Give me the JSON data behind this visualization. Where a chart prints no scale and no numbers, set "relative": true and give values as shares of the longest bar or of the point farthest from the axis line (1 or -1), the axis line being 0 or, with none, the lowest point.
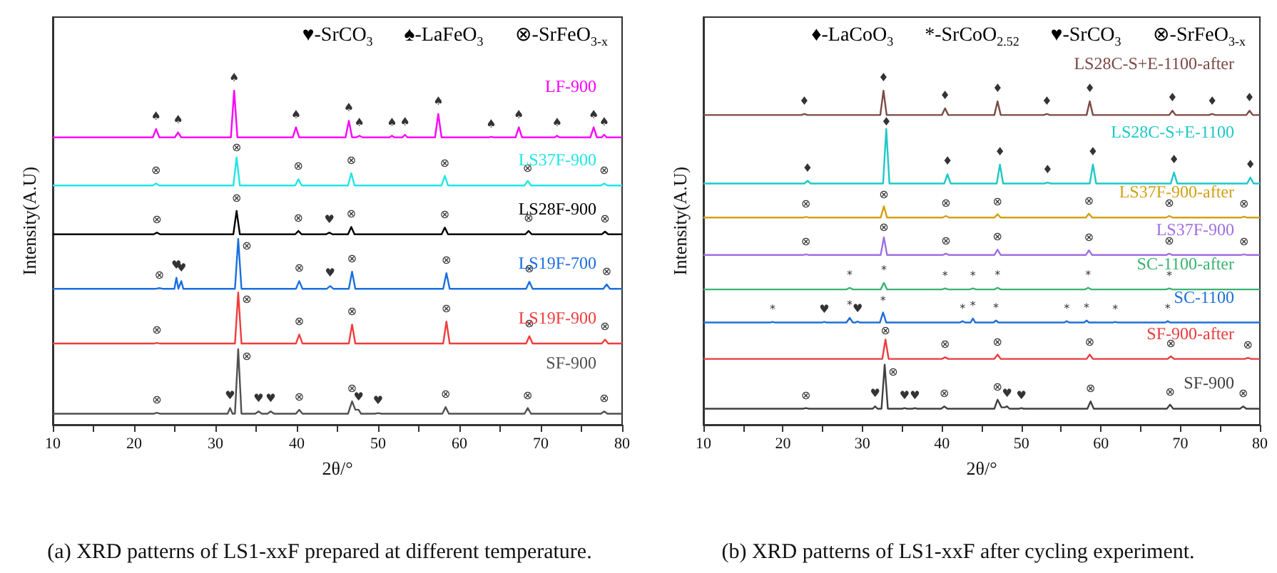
{
  "chart_data": [
    {
      "type": "line",
      "title": "(a) XRD patterns of LS1-xxF prepared at different temperature.",
      "xlabel": "2θ/°",
      "ylabel": "Intensity(A.U)",
      "relative": true,
      "legend": false,
      "grid": false,
      "xlim": [
        10,
        80
      ],
      "xticks": [
        10,
        {
          "value": 15,
          "label": null
        },
        20,
        {
          "value": 25,
          "label": null
        },
        30,
        {
          "value": 35,
          "label": null
        },
        40,
        {
          "value": 45,
          "label": null
        },
        50,
        {
          "value": 55,
          "label": null
        },
        60,
        {
          "value": 65,
          "label": null
        },
        70,
        {
          "value": 75,
          "label": null
        },
        80
      ],
      "series": [
        {
          "name": "LF-900",
          "color": "#ff00ff",
          "x": [
            10,
            22.3,
            22.7,
            23.1,
            25.0,
            25.4,
            25.8,
            31.9,
            32.3,
            32.7,
            39.5,
            39.9,
            40.3,
            46.0,
            46.4,
            46.8,
            47.3,
            47.7,
            48.1,
            51.4,
            51.7,
            52.0,
            53.0,
            53.3,
            53.6,
            57.0,
            57.4,
            57.8,
            63.6,
            63.9,
            64.2,
            66.9,
            67.3,
            67.7,
            71.7,
            72.0,
            72.3,
            76.1,
            76.5,
            76.9,
            77.5,
            77.8,
            78.1,
            80
          ],
          "values": [
            0.86,
            0.86,
            0.885,
            0.86,
            0.86,
            0.875,
            0.86,
            0.86,
            1,
            0.86,
            0.86,
            0.89,
            0.86,
            0.86,
            0.91,
            0.86,
            0.86,
            0.865,
            0.86,
            0.86,
            0.865,
            0.86,
            0.86,
            0.868,
            0.86,
            0.86,
            0.93,
            0.86,
            0.86,
            0.862,
            0.86,
            0.86,
            0.89,
            0.86,
            0.86,
            0.865,
            0.86,
            0.86,
            0.89,
            0.86,
            0.86,
            0.868,
            0.86,
            0.86
          ]
        },
        {
          "name": "LS37F-900",
          "color": "#22e5e5",
          "x": [
            10,
            22.3,
            22.7,
            23.1,
            32.2,
            32.6,
            33.0,
            39.8,
            40.2,
            40.6,
            46.3,
            46.7,
            47.1,
            57.8,
            58.2,
            58.6,
            68.0,
            68.4,
            68.8,
            77.4,
            77.8,
            78.2,
            80
          ],
          "values": [
            0.716,
            0.716,
            0.722,
            0.716,
            0.716,
            0.8,
            0.716,
            0.716,
            0.735,
            0.716,
            0.716,
            0.753,
            0.716,
            0.716,
            0.745,
            0.716,
            0.716,
            0.73,
            0.716,
            0.716,
            0.722,
            0.716,
            0.716
          ]
        },
        {
          "name": "LS28F-900",
          "color": "#000000",
          "x": [
            10,
            22.4,
            22.8,
            23.2,
            32.2,
            32.6,
            33.0,
            39.8,
            40.2,
            40.6,
            43.6,
            44.0,
            44.4,
            46.3,
            46.7,
            47.1,
            57.8,
            58.2,
            58.6,
            68.1,
            68.5,
            68.9,
            77.5,
            77.9,
            78.3,
            80
          ],
          "values": [
            0.57,
            0.57,
            0.575,
            0.57,
            0.57,
            0.64,
            0.57,
            0.57,
            0.58,
            0.57,
            0.57,
            0.575,
            0.57,
            0.57,
            0.592,
            0.57,
            0.57,
            0.59,
            0.57,
            0.57,
            0.58,
            0.57,
            0.57,
            0.578,
            0.57,
            0.57
          ]
        },
        {
          "name": "LS19F-700",
          "color": "#1a6fdf",
          "x": [
            10,
            22.7,
            23.1,
            23.5,
            24.95,
            25.2,
            25.45,
            25.55,
            25.8,
            26.05,
            32.4,
            32.8,
            33.2,
            39.9,
            40.3,
            40.7,
            43.7,
            44.1,
            44.5,
            46.4,
            46.8,
            47.2,
            58.0,
            58.4,
            58.8,
            68.2,
            68.6,
            69.0,
            77.7,
            78.1,
            78.5,
            80
          ],
          "values": [
            0.407,
            0.407,
            0.409,
            0.407,
            0.407,
            0.44,
            0.407,
            0.407,
            0.43,
            0.407,
            0.407,
            0.556,
            0.407,
            0.407,
            0.43,
            0.407,
            0.407,
            0.415,
            0.407,
            0.407,
            0.458,
            0.407,
            0.407,
            0.454,
            0.407,
            0.407,
            0.428,
            0.407,
            0.407,
            0.42,
            0.407,
            0.407
          ]
        },
        {
          "name": "LS19F-900",
          "color": "#f03c3c",
          "x": [
            10,
            22.4,
            22.8,
            23.2,
            32.4,
            32.8,
            33.2,
            39.9,
            40.3,
            40.7,
            46.4,
            46.8,
            47.2,
            58.0,
            58.4,
            58.8,
            68.2,
            68.6,
            69.0,
            77.5,
            77.9,
            78.3,
            80
          ],
          "values": [
            0.243,
            0.243,
            0.245,
            0.243,
            0.243,
            0.396,
            0.243,
            0.243,
            0.27,
            0.243,
            0.243,
            0.3,
            0.243,
            0.243,
            0.309,
            0.243,
            0.243,
            0.265,
            0.243,
            0.243,
            0.255,
            0.243,
            0.243
          ]
        },
        {
          "name": "SF-900",
          "color": "#505050",
          "x": [
            10,
            22.4,
            22.8,
            23.2,
            31.5,
            31.8,
            32.1,
            32.4,
            32.8,
            33.2,
            34.9,
            35.3,
            35.7,
            36.4,
            36.8,
            37.2,
            39.9,
            40.3,
            40.7,
            46.3,
            46.8,
            47.2,
            47.6,
            47.9,
            49.6,
            50.0,
            50.4,
            57.9,
            58.3,
            58.7,
            68.0,
            68.4,
            68.8,
            77.4,
            77.8,
            78.2,
            80
          ],
          "values": [
            0.033,
            0.033,
            0.036,
            0.033,
            0.033,
            0.05,
            0.033,
            0.033,
            0.226,
            0.033,
            0.033,
            0.04,
            0.033,
            0.033,
            0.04,
            0.033,
            0.033,
            0.045,
            0.033,
            0.033,
            0.07,
            0.045,
            0.045,
            0.033,
            0.033,
            0.035,
            0.033,
            0.033,
            0.053,
            0.033,
            0.033,
            0.05,
            0.033,
            0.033,
            0.04,
            0.033,
            0.033
          ]
        }
      ],
      "annotations": [
        "♥-SrCO$_{3}$",
        "♠-LaFeO$_{3}$",
        "⊗-SrFeO$_{3-x}$",
        {
          "text": "♠",
          "x": 22.7,
          "y": 0.885
        },
        {
          "text": "♠",
          "x": 25.4,
          "y": 0.875
        },
        {
          "text": "♠",
          "x": 32.3,
          "y": 1
        },
        {
          "text": "♠",
          "x": 39.9,
          "y": 0.89
        },
        {
          "text": "♠",
          "x": 46.4,
          "y": 0.91
        },
        {
          "text": "♠",
          "x": 47.7,
          "y": 0.865
        },
        {
          "text": "♠",
          "x": 51.7,
          "y": 0.865
        },
        {
          "text": "♠",
          "x": 53.3,
          "y": 0.868
        },
        {
          "text": "♠",
          "x": 57.4,
          "y": 0.93
        },
        {
          "text": "♠",
          "x": 63.9,
          "y": 0.862
        },
        {
          "text": "♠",
          "x": 67.3,
          "y": 0.89
        },
        {
          "text": "♠",
          "x": 72.0,
          "y": 0.865
        },
        {
          "text": "♠",
          "x": 76.5,
          "y": 0.89
        },
        {
          "text": "♠",
          "x": 77.8,
          "y": 0.868
        },
        {
          "text": "⊗",
          "x": 22.7,
          "y": 0.722
        },
        {
          "text": "⊗",
          "x": 32.6,
          "y": 0.8
        },
        {
          "text": "⊗",
          "x": 40.2,
          "y": 0.735
        },
        {
          "text": "⊗",
          "x": 46.7,
          "y": 0.753
        },
        {
          "text": "⊗",
          "x": 58.2,
          "y": 0.745
        },
        {
          "text": "⊗",
          "x": 68.4,
          "y": 0.73
        },
        {
          "text": "⊗",
          "x": 77.8,
          "y": 0.722
        },
        {
          "text": "⊗",
          "x": 22.8,
          "y": 0.575
        },
        {
          "text": "⊗",
          "x": 32.6,
          "y": 0.64
        },
        {
          "text": "⊗",
          "x": 40.2,
          "y": 0.58
        },
        {
          "text": "♥",
          "x": 44.0,
          "y": 0.575
        },
        {
          "text": "⊗",
          "x": 46.7,
          "y": 0.592
        },
        {
          "text": "⊗",
          "x": 58.2,
          "y": 0.59
        },
        {
          "text": "⊗",
          "x": 68.5,
          "y": 0.58
        },
        {
          "text": "⊗",
          "x": 77.9,
          "y": 0.578
        },
        {
          "text": "⊗",
          "x": 23.1,
          "y": 0.409
        },
        {
          "text": "♥",
          "x": 25.2,
          "y": 0.44
        },
        {
          "text": "♥",
          "x": 25.8,
          "y": 0.43
        },
        {
          "text": "⊗",
          "x": 32.8,
          "y": 0.556
        },
        {
          "text": "⊗",
          "x": 40.3,
          "y": 0.43
        },
        {
          "text": "♥",
          "x": 44.1,
          "y": 0.415
        },
        {
          "text": "⊗",
          "x": 46.8,
          "y": 0.458
        },
        {
          "text": "⊗",
          "x": 58.4,
          "y": 0.454
        },
        {
          "text": "⊗",
          "x": 68.6,
          "y": 0.428
        },
        {
          "text": "⊗",
          "x": 78.1,
          "y": 0.42
        },
        {
          "text": "⊗",
          "x": 22.8,
          "y": 0.245
        },
        {
          "text": "⊗",
          "x": 32.8,
          "y": 0.396
        },
        {
          "text": "⊗",
          "x": 40.3,
          "y": 0.27
        },
        {
          "text": "⊗",
          "x": 46.8,
          "y": 0.3
        },
        {
          "text": "⊗",
          "x": 58.4,
          "y": 0.309
        },
        {
          "text": "⊗",
          "x": 68.6,
          "y": 0.265
        },
        {
          "text": "⊗",
          "x": 77.9,
          "y": 0.255
        },
        {
          "text": "⊗",
          "x": 22.8,
          "y": 0.036
        },
        {
          "text": "♥",
          "x": 31.8,
          "y": 0.05
        },
        {
          "text": "⊗",
          "x": 32.8,
          "y": 0.226
        },
        {
          "text": "♥",
          "x": 35.3,
          "y": 0.04
        },
        {
          "text": "♥",
          "x": 36.8,
          "y": 0.04
        },
        {
          "text": "⊗",
          "x": 40.3,
          "y": 0.045
        },
        {
          "text": "⊗",
          "x": 46.8,
          "y": 0.07
        },
        {
          "text": "♥",
          "x": 47.6,
          "y": 0.045
        },
        {
          "text": "♥",
          "x": 50.0,
          "y": 0.035
        },
        {
          "text": "⊗",
          "x": 58.3,
          "y": 0.053
        },
        {
          "text": "⊗",
          "x": 68.4,
          "y": 0.05
        },
        {
          "text": "⊗",
          "x": 77.8,
          "y": 0.04
        }
      ]
    },
    {
      "type": "line",
      "title": "(b) XRD patterns of LS1-xxF after cycling experiment.",
      "xlabel": "2θ/°",
      "ylabel": "Intensity(A.U)",
      "relative": true,
      "legend": false,
      "grid": false,
      "xlim": [
        10,
        80
      ],
      "xticks": [
        10,
        {
          "value": 15,
          "label": null
        },
        20,
        {
          "value": 25,
          "label": null
        },
        30,
        {
          "value": 35,
          "label": null
        },
        40,
        {
          "value": 45,
          "label": null
        },
        50,
        {
          "value": 55,
          "label": null
        },
        60,
        {
          "value": 65,
          "label": null
        },
        70,
        {
          "value": 75,
          "label": null
        },
        80
      ],
      "series": [
        {
          "name": "LS28C-S+E-1100-after",
          "color": "#7b4a44",
          "x": [
            10,
            22.3,
            22.7,
            23.1,
            32.25,
            32.65,
            33.05,
            40.0,
            40.4,
            40.8,
            46.6,
            47.0,
            47.4,
            52.8,
            53.2,
            53.6,
            58.2,
            58.6,
            59.0,
            68.6,
            69.0,
            69.4,
            73.6,
            74.0,
            74.4,
            78.3,
            78.7,
            79.1,
            80
          ],
          "values": [
            0.927,
            0.927,
            0.93,
            0.927,
            0.927,
            1,
            0.927,
            0.927,
            0.947,
            0.927,
            0.927,
            0.968,
            0.927,
            0.927,
            0.93,
            0.927,
            0.927,
            0.968,
            0.927,
            0.927,
            0.94,
            0.927,
            0.927,
            0.93,
            0.927,
            0.927,
            0.94,
            0.927,
            0.927
          ]
        },
        {
          "name": "LS28C-S+E-1100",
          "color": "#1ec8c8",
          "x": [
            10,
            22.7,
            23.1,
            23.5,
            32.6,
            33.0,
            33.4,
            40.3,
            40.7,
            41.1,
            46.9,
            47.3,
            47.7,
            52.9,
            53.3,
            53.7,
            58.6,
            59.0,
            59.4,
            68.8,
            69.2,
            69.6,
            78.4,
            78.8,
            79.2,
            80
          ],
          "values": [
            0.722,
            0.722,
            0.73,
            0.722,
            0.722,
            0.885,
            0.722,
            0.722,
            0.75,
            0.722,
            0.722,
            0.779,
            0.722,
            0.722,
            0.725,
            0.722,
            0.722,
            0.779,
            0.722,
            0.722,
            0.755,
            0.722,
            0.722,
            0.74,
            0.722,
            0.722
          ]
        },
        {
          "name": "LS37F-900-after",
          "color": "#d4a017",
          "x": [
            10,
            22.5,
            22.9,
            23.3,
            32.3,
            32.7,
            33.1,
            40.1,
            40.5,
            40.9,
            46.6,
            47.0,
            47.4,
            58.1,
            58.5,
            58.9,
            68.2,
            68.6,
            69.0,
            77.6,
            78.0,
            78.4,
            80
          ],
          "values": [
            0.62,
            0.62,
            0.622,
            0.62,
            0.62,
            0.654,
            0.62,
            0.62,
            0.625,
            0.62,
            0.62,
            0.63,
            0.62,
            0.62,
            0.632,
            0.62,
            0.62,
            0.625,
            0.62,
            0.62,
            0.623,
            0.62,
            0.62
          ]
        },
        {
          "name": "LS37F-900",
          "color": "#a070e0",
          "x": [
            10,
            22.5,
            22.9,
            23.3,
            32.3,
            32.7,
            33.1,
            40.1,
            40.5,
            40.9,
            46.6,
            47.0,
            47.4,
            58.1,
            58.5,
            58.9,
            68.2,
            68.6,
            69.0,
            77.6,
            78.0,
            78.4,
            80
          ],
          "values": [
            0.508,
            0.508,
            0.51,
            0.508,
            0.508,
            0.561,
            0.508,
            0.508,
            0.512,
            0.508,
            0.508,
            0.524,
            0.508,
            0.508,
            0.522,
            0.508,
            0.508,
            0.512,
            0.508,
            0.508,
            0.51,
            0.508,
            0.508
          ]
        },
        {
          "name": "SC-1100-after",
          "color": "#3cb371",
          "x": [
            10,
            28.0,
            28.4,
            28.8,
            32.3,
            32.7,
            33.1,
            40.0,
            40.4,
            40.8,
            43.5,
            43.9,
            44.3,
            46.6,
            47.0,
            47.4,
            58.0,
            58.4,
            58.8,
            68.2,
            68.6,
            69.0,
            80
          ],
          "values": [
            0.405,
            0.405,
            0.41,
            0.405,
            0.405,
            0.425,
            0.405,
            0.405,
            0.408,
            0.405,
            0.405,
            0.408,
            0.405,
            0.405,
            0.41,
            0.405,
            0.405,
            0.41,
            0.405,
            0.405,
            0.408,
            0.405,
            0.405
          ]
        },
        {
          "name": "SC-1100",
          "color": "#1f6fd6",
          "x": [
            10,
            18.4,
            18.7,
            19.0,
            24.9,
            25.2,
            25.5,
            28.0,
            28.4,
            28.8,
            29.1,
            29.4,
            29.7,
            32.2,
            32.6,
            33.0,
            42.3,
            42.6,
            42.9,
            43.6,
            43.9,
            44.2,
            46.5,
            46.8,
            47.1,
            55.4,
            55.7,
            56.0,
            57.9,
            58.2,
            58.5,
            61.5,
            61.8,
            62.1,
            68.1,
            68.4,
            68.7,
            80
          ],
          "values": [
            0.306,
            0.306,
            0.308,
            0.306,
            0.306,
            0.308,
            0.306,
            0.306,
            0.32,
            0.306,
            0.306,
            0.309,
            0.306,
            0.306,
            0.336,
            0.306,
            0.306,
            0.31,
            0.306,
            0.306,
            0.318,
            0.306,
            0.306,
            0.312,
            0.306,
            0.306,
            0.31,
            0.306,
            0.306,
            0.312,
            0.306,
            0.306,
            0.308,
            0.306,
            0.306,
            0.31,
            0.306,
            0.306
          ]
        },
        {
          "name": "SF-900-after",
          "color": "#e83c3c",
          "x": [
            10,
            32.5,
            32.9,
            33.3,
            40.0,
            40.4,
            40.8,
            46.6,
            47.0,
            47.4,
            58.2,
            58.6,
            59.0,
            68.4,
            68.8,
            69.2,
            78.1,
            78.5,
            78.9,
            80
          ],
          "values": [
            0.197,
            0.197,
            0.255,
            0.197,
            0.197,
            0.202,
            0.197,
            0.197,
            0.21,
            0.197,
            0.197,
            0.21,
            0.197,
            0.197,
            0.205,
            0.197,
            0.197,
            0.2,
            0.197,
            0.197
          ]
        },
        {
          "name": "SF-900",
          "color": "#404040",
          "x": [
            10,
            22.5,
            22.9,
            23.3,
            31.3,
            31.6,
            31.9,
            32.4,
            32.8,
            33.2,
            35.0,
            35.3,
            35.6,
            36.3,
            36.6,
            36.9,
            39.9,
            40.3,
            40.7,
            46.6,
            47.0,
            47.5,
            47.9,
            48.2,
            48.5,
            49.7,
            50.0,
            50.3,
            58.3,
            58.7,
            59.1,
            68.3,
            68.7,
            69.1,
            77.5,
            77.9,
            78.3,
            80
          ],
          "values": [
            0.048,
            0.048,
            0.05,
            0.048,
            0.048,
            0.055,
            0.048,
            0.048,
            0.18,
            0.048,
            0.048,
            0.05,
            0.048,
            0.048,
            0.05,
            0.048,
            0.048,
            0.055,
            0.048,
            0.048,
            0.075,
            0.052,
            0.052,
            0.055,
            0.048,
            0.048,
            0.05,
            0.048,
            0.048,
            0.07,
            0.048,
            0.048,
            0.06,
            0.048,
            0.048,
            0.055,
            0.048,
            0.048
          ]
        }
      ],
      "annotations": [
        "♦-LaCoO$_{3}$",
        "*-SrCoO$_{2.52}$",
        "♥-SrCO$_{3}$",
        "⊗-SrFeO$_{3-x}$",
        {
          "text": "♦",
          "x": 22.7,
          "y": 0.93
        },
        {
          "text": "♦",
          "x": 32.65,
          "y": 1
        },
        {
          "text": "♦",
          "x": 40.4,
          "y": 0.947
        },
        {
          "text": "♦",
          "x": 47.0,
          "y": 0.968
        },
        {
          "text": "♦",
          "x": 53.2,
          "y": 0.93
        },
        {
          "text": "♦",
          "x": 58.6,
          "y": 0.968
        },
        {
          "text": "♦",
          "x": 69.0,
          "y": 0.94
        },
        {
          "text": "♦",
          "x": 74.0,
          "y": 0.93
        },
        {
          "text": "♦",
          "x": 78.7,
          "y": 0.94
        },
        {
          "text": "♦",
          "x": 23.1,
          "y": 0.73
        },
        {
          "text": "♦",
          "x": 33.0,
          "y": 0.885
        },
        {
          "text": "♦",
          "x": 40.7,
          "y": 0.75
        },
        {
          "text": "♦",
          "x": 47.3,
          "y": 0.779
        },
        {
          "text": "♦",
          "x": 53.3,
          "y": 0.725
        },
        {
          "text": "♦",
          "x": 59.0,
          "y": 0.779
        },
        {
          "text": "♦",
          "x": 69.2,
          "y": 0.755
        },
        {
          "text": "♦",
          "x": 78.8,
          "y": 0.74
        },
        {
          "text": "⊗",
          "x": 22.9,
          "y": 0.622
        },
        {
          "text": "⊗",
          "x": 32.7,
          "y": 0.654
        },
        {
          "text": "⊗",
          "x": 40.5,
          "y": 0.625
        },
        {
          "text": "⊗",
          "x": 47.0,
          "y": 0.63
        },
        {
          "text": "⊗",
          "x": 58.5,
          "y": 0.632
        },
        {
          "text": "⊗",
          "x": 68.6,
          "y": 0.625
        },
        {
          "text": "⊗",
          "x": 78.0,
          "y": 0.623
        },
        {
          "text": "⊗",
          "x": 22.9,
          "y": 0.51
        },
        {
          "text": "⊗",
          "x": 32.7,
          "y": 0.561
        },
        {
          "text": "⊗",
          "x": 40.5,
          "y": 0.512
        },
        {
          "text": "⊗",
          "x": 47.0,
          "y": 0.524
        },
        {
          "text": "⊗",
          "x": 58.5,
          "y": 0.522
        },
        {
          "text": "⊗",
          "x": 68.6,
          "y": 0.512
        },
        {
          "text": "⊗",
          "x": 78.0,
          "y": 0.51
        },
        {
          "text": "*",
          "x": 28.4,
          "y": 0.41
        },
        {
          "text": "*",
          "x": 32.7,
          "y": 0.425
        },
        {
          "text": "*",
          "x": 40.4,
          "y": 0.408
        },
        {
          "text": "*",
          "x": 43.9,
          "y": 0.408
        },
        {
          "text": "*",
          "x": 47.0,
          "y": 0.41
        },
        {
          "text": "*",
          "x": 58.4,
          "y": 0.41
        },
        {
          "text": "*",
          "x": 68.6,
          "y": 0.408
        },
        {
          "text": "*",
          "x": 18.7,
          "y": 0.308
        },
        {
          "text": "♥",
          "x": 25.2,
          "y": 0.308
        },
        {
          "text": "*",
          "x": 28.4,
          "y": 0.32
        },
        {
          "text": "♥",
          "x": 29.4,
          "y": 0.309
        },
        {
          "text": "*",
          "x": 32.6,
          "y": 0.336
        },
        {
          "text": "*",
          "x": 42.6,
          "y": 0.31
        },
        {
          "text": "*",
          "x": 43.9,
          "y": 0.318
        },
        {
          "text": "*",
          "x": 46.8,
          "y": 0.312
        },
        {
          "text": "*",
          "x": 55.7,
          "y": 0.31
        },
        {
          "text": "*",
          "x": 58.2,
          "y": 0.312
        },
        {
          "text": "*",
          "x": 61.8,
          "y": 0.308
        },
        {
          "text": "*",
          "x": 68.4,
          "y": 0.31
        },
        {
          "text": "⊗",
          "x": 32.9,
          "y": 0.255
        },
        {
          "text": "⊗",
          "x": 40.4,
          "y": 0.202
        },
        {
          "text": "⊗",
          "x": 47.0,
          "y": 0.21
        },
        {
          "text": "⊗",
          "x": 58.6,
          "y": 0.21
        },
        {
          "text": "⊗",
          "x": 68.8,
          "y": 0.205
        },
        {
          "text": "⊗",
          "x": 78.5,
          "y": 0.2
        },
        {
          "text": "⊗",
          "x": 22.9,
          "y": 0.05
        },
        {
          "text": "♥",
          "x": 31.6,
          "y": 0.055
        },
        {
          "text": "⊗",
          "x": 32.8,
          "y": 0.18
        },
        {
          "text": "♥",
          "x": 35.3,
          "y": 0.05
        },
        {
          "text": "♥",
          "x": 36.6,
          "y": 0.05
        },
        {
          "text": "⊗",
          "x": 40.3,
          "y": 0.055
        },
        {
          "text": "⊗",
          "x": 47.0,
          "y": 0.075
        },
        {
          "text": "♥",
          "x": 48.2,
          "y": 0.055
        },
        {
          "text": "♥",
          "x": 50.0,
          "y": 0.05
        },
        {
          "text": "⊗",
          "x": 58.7,
          "y": 0.07
        },
        {
          "text": "⊗",
          "x": 68.7,
          "y": 0.06
        },
        {
          "text": "⊗",
          "x": 77.9,
          "y": 0.055
        }
      ]
    }
  ]
}
